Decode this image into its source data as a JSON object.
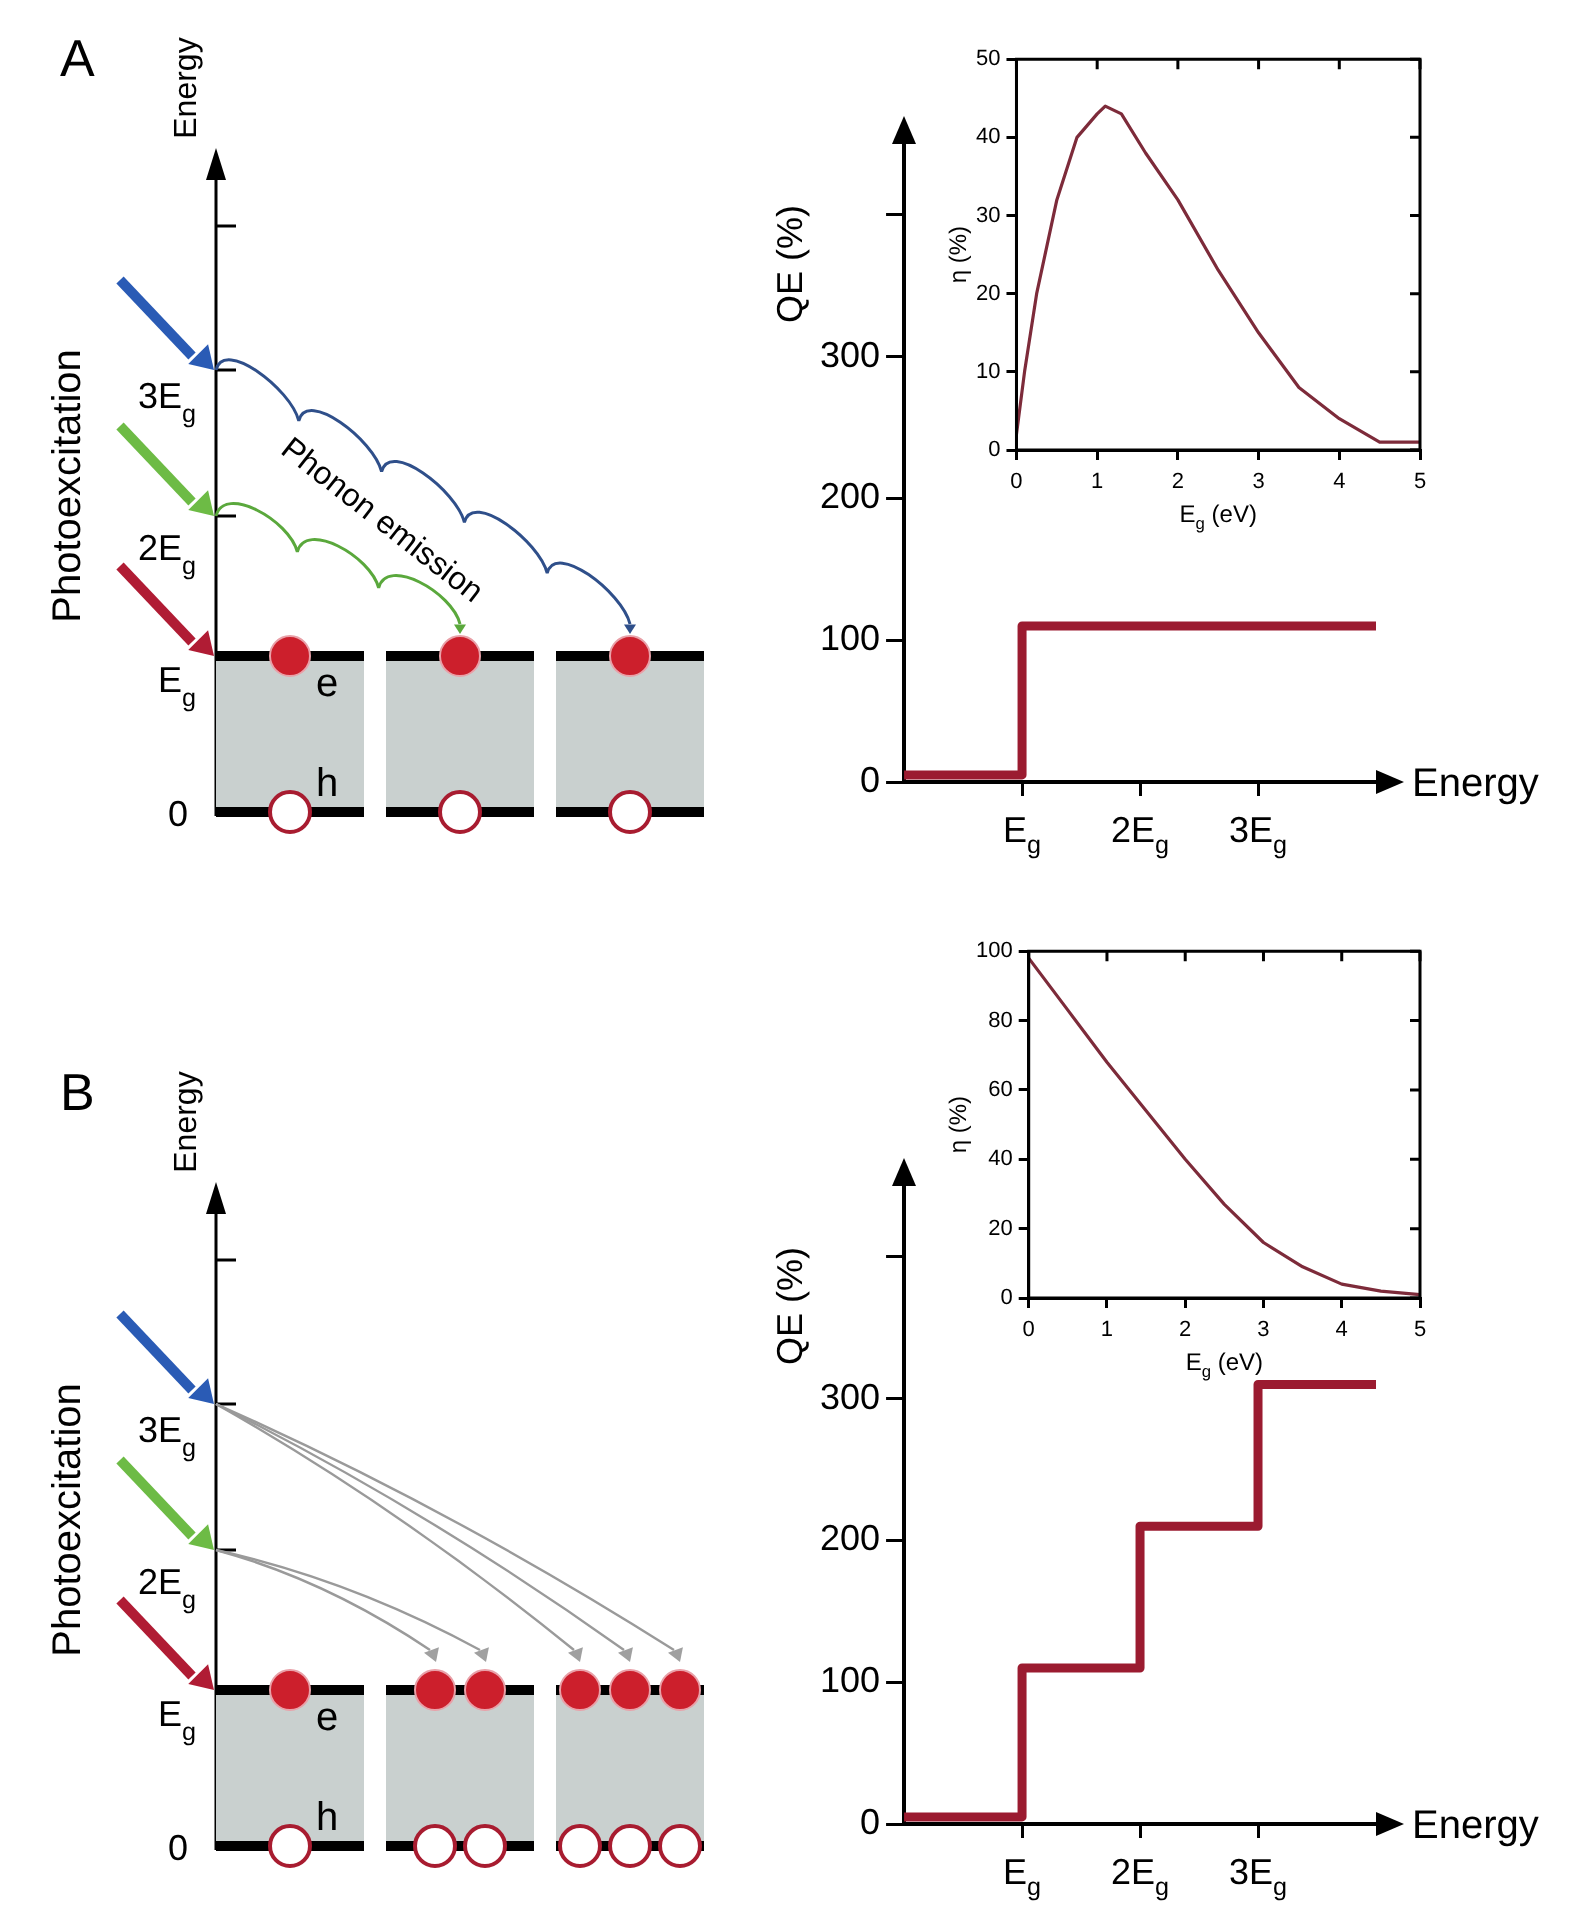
{
  "chart_data": [
    {
      "type": "other",
      "title": "A",
      "ylabel": "Energy",
      "annotations": [
        "Photoexcitation",
        "0",
        "E$_{g}$",
        "2E$_{g}$",
        "3E$_{g}$",
        "e",
        "h",
        "Phonon emission"
      ]
    },
    {
      "type": "step",
      "ylabel": "QE (%)",
      "xlabel": "Energy",
      "x": [
        0,
        1,
        4
      ],
      "values": [
        5,
        110,
        110
      ],
      "color": "#9b1b30",
      "marker": "none",
      "xlim": [
        0,
        4
      ],
      "xticks": [
        {
          "value": 1,
          "label": "E$_{g}$"
        },
        {
          "value": 2,
          "label": "2E$_{g}$"
        },
        {
          "value": 3,
          "label": "3E$_{g}$"
        }
      ],
      "ylim": [
        0,
        450
      ],
      "yticks": [
        0,
        100,
        200,
        300,
        {
          "value": 400,
          "label": null
        }
      ]
    },
    {
      "type": "line",
      "xlabel": "E$_{g}$ (eV)",
      "ylabel": "η (%)",
      "x": [
        0,
        0.1,
        0.25,
        0.5,
        0.75,
        1,
        1.1,
        1.3,
        1.6,
        2,
        2.5,
        3,
        3.5,
        4,
        4.5,
        5
      ],
      "values": [
        2,
        10,
        20,
        32,
        40,
        43,
        44,
        43,
        38,
        32,
        23,
        15,
        8,
        4,
        1,
        1
      ],
      "color": "#7d2b3a",
      "marker": "none",
      "xlim": [
        0,
        5
      ],
      "xticks": [
        0,
        1,
        2,
        3,
        4,
        5
      ],
      "ylim": [
        0,
        50
      ],
      "yticks": [
        0,
        10,
        20,
        30,
        40,
        50
      ]
    },
    {
      "type": "other",
      "title": "B",
      "ylabel": "Energy",
      "annotations": [
        "Photoexcitation",
        "0",
        "E$_{g}$",
        "2E$_{g}$",
        "3E$_{g}$",
        "e",
        "h"
      ]
    },
    {
      "type": "step",
      "ylabel": "QE (%)",
      "xlabel": "Energy",
      "x": [
        0,
        1,
        2,
        3,
        4
      ],
      "values": [
        5,
        110,
        210,
        310,
        310
      ],
      "color": "#9b1b30",
      "marker": "none",
      "xlim": [
        0,
        4
      ],
      "xticks": [
        {
          "value": 1,
          "label": "E$_{g}$"
        },
        {
          "value": 2,
          "label": "2E$_{g}$"
        },
        {
          "value": 3,
          "label": "3E$_{g}$"
        }
      ],
      "ylim": [
        0,
        450
      ],
      "yticks": [
        0,
        100,
        200,
        300,
        {
          "value": 400,
          "label": null
        }
      ]
    },
    {
      "type": "line",
      "xlabel": "E$_{g}$ (eV)",
      "ylabel": "η (%)",
      "x": [
        0,
        0.5,
        1,
        1.5,
        2,
        2.5,
        3,
        3.5,
        4,
        4.5,
        5
      ],
      "values": [
        98,
        83,
        68,
        54,
        40,
        27,
        16,
        9,
        4,
        2,
        1
      ],
      "color": "#7d2b3a",
      "marker": "none",
      "xlim": [
        0,
        5
      ],
      "xticks": [
        0,
        1,
        2,
        3,
        4,
        5
      ],
      "ylim": [
        0,
        100
      ],
      "yticks": [
        0,
        20,
        40,
        60,
        80,
        100
      ]
    }
  ]
}
